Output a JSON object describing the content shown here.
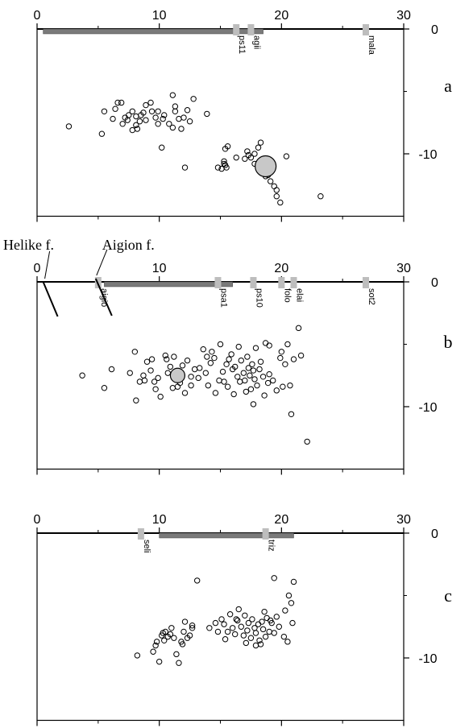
{
  "chart_data": [
    {
      "type": "scatter",
      "panel": "a",
      "xlim": [
        0,
        30
      ],
      "ylim": [
        -15,
        0
      ],
      "x_ticks": [
        "0",
        "10",
        "20",
        "30"
      ],
      "y_ticks": [
        "0",
        "-10"
      ],
      "band": [
        0.5,
        18.5
      ],
      "stations": [
        {
          "name": "ps11",
          "x": 16.3
        },
        {
          "name": "agii",
          "x": 17.5
        },
        {
          "name": "mala",
          "x": 26.9
        }
      ],
      "big_event": {
        "x": 18.7,
        "y": -11.0
      },
      "points": [
        [
          2.6,
          -7.8
        ],
        [
          5.3,
          -8.4
        ],
        [
          5.5,
          -6.6
        ],
        [
          6.2,
          -7.2
        ],
        [
          6.4,
          -6.4
        ],
        [
          6.6,
          -5.9
        ],
        [
          6.9,
          -5.9
        ],
        [
          7.0,
          -7.6
        ],
        [
          7.2,
          -7.1
        ],
        [
          7.4,
          -7.3
        ],
        [
          7.5,
          -6.9
        ],
        [
          7.8,
          -6.6
        ],
        [
          7.8,
          -8.1
        ],
        [
          8.1,
          -7.0
        ],
        [
          8.1,
          -7.7
        ],
        [
          8.2,
          -8.0
        ],
        [
          8.4,
          -7.4
        ],
        [
          8.5,
          -6.9
        ],
        [
          8.7,
          -6.7
        ],
        [
          8.9,
          -7.3
        ],
        [
          8.9,
          -6.1
        ],
        [
          9.3,
          -5.9
        ],
        [
          9.4,
          -6.6
        ],
        [
          9.7,
          -7.1
        ],
        [
          9.9,
          -7.6
        ],
        [
          9.9,
          -6.6
        ],
        [
          10.3,
          -7.2
        ],
        [
          10.2,
          -9.5
        ],
        [
          10.4,
          -6.9
        ],
        [
          10.8,
          -7.6
        ],
        [
          11.1,
          -7.9
        ],
        [
          11.3,
          -6.6
        ],
        [
          11.1,
          -5.3
        ],
        [
          11.3,
          -6.2
        ],
        [
          11.6,
          -7.2
        ],
        [
          11.8,
          -8.0
        ],
        [
          12.0,
          -7.1
        ],
        [
          12.3,
          -6.5
        ],
        [
          12.5,
          -7.4
        ],
        [
          12.8,
          -5.6
        ],
        [
          12.1,
          -11.1
        ],
        [
          13.9,
          -6.8
        ],
        [
          14.8,
          -11.1
        ],
        [
          15.1,
          -11.2
        ],
        [
          15.3,
          -10.6
        ],
        [
          15.4,
          -10.9
        ],
        [
          15.6,
          -9.4
        ],
        [
          15.4,
          -9.6
        ],
        [
          15.5,
          -11.1
        ],
        [
          15.3,
          -10.8
        ],
        [
          16.3,
          -10.3
        ],
        [
          17.0,
          -10.4
        ],
        [
          17.3,
          -10.1
        ],
        [
          17.5,
          -10.3
        ],
        [
          17.8,
          -10.0
        ],
        [
          17.8,
          -10.8
        ],
        [
          18.1,
          -9.5
        ],
        [
          18.3,
          -9.1
        ],
        [
          18.7,
          -11.8
        ],
        [
          19.1,
          -12.2
        ],
        [
          19.4,
          -12.6
        ],
        [
          19.6,
          -13.4
        ],
        [
          19.6,
          -12.9
        ],
        [
          19.9,
          -13.9
        ],
        [
          18.6,
          -10.5
        ],
        [
          18.9,
          -11.7
        ],
        [
          20.4,
          -10.2
        ],
        [
          23.2,
          -13.4
        ],
        [
          17.2,
          -9.8
        ]
      ]
    },
    {
      "type": "scatter",
      "panel": "b",
      "xlim": [
        0,
        30
      ],
      "ylim": [
        -15,
        0
      ],
      "x_ticks": [
        "0",
        "10",
        "20",
        "30"
      ],
      "y_ticks": [
        "0",
        "-10"
      ],
      "band": [
        5.5,
        16.0
      ],
      "stations": [
        {
          "name": "aigio",
          "x": 5.0
        },
        {
          "name": "psa1",
          "x": 14.8
        },
        {
          "name": "ps10",
          "x": 17.7
        },
        {
          "name": "folo",
          "x": 20.0
        },
        {
          "name": "elai",
          "x": 21.0
        },
        {
          "name": "sot2",
          "x": 26.9
        }
      ],
      "faults": [
        {
          "name": "Helike f.",
          "x": 0.5
        },
        {
          "name": "Aigion f.",
          "x": 4.8
        }
      ],
      "big_event": {
        "x": 11.5,
        "y": -7.5
      },
      "points": [
        [
          3.7,
          -7.5
        ],
        [
          5.5,
          -8.5
        ],
        [
          6.1,
          -7.0
        ],
        [
          7.6,
          -7.3
        ],
        [
          8.1,
          -9.5
        ],
        [
          8.0,
          -5.6
        ],
        [
          8.7,
          -7.5
        ],
        [
          8.8,
          -7.9
        ],
        [
          9.0,
          -6.4
        ],
        [
          9.3,
          -7.1
        ],
        [
          9.6,
          -8.0
        ],
        [
          9.7,
          -8.6
        ],
        [
          9.9,
          -7.7
        ],
        [
          10.1,
          -9.2
        ],
        [
          10.5,
          -5.9
        ],
        [
          10.6,
          -6.2
        ],
        [
          10.9,
          -6.8
        ],
        [
          11.2,
          -6.0
        ],
        [
          11.4,
          -7.8
        ],
        [
          11.5,
          -8.4
        ],
        [
          11.7,
          -8.1
        ],
        [
          11.9,
          -6.7
        ],
        [
          12.1,
          -8.9
        ],
        [
          12.6,
          -8.3
        ],
        [
          12.9,
          -7.0
        ],
        [
          13.2,
          -7.7
        ],
        [
          13.6,
          -5.4
        ],
        [
          13.8,
          -7.3
        ],
        [
          14.0,
          -8.3
        ],
        [
          14.2,
          -6.5
        ],
        [
          14.5,
          -6.1
        ],
        [
          14.9,
          -7.9
        ],
        [
          15.0,
          -5.0
        ],
        [
          15.2,
          -7.2
        ],
        [
          15.5,
          -6.6
        ],
        [
          15.6,
          -8.4
        ],
        [
          15.9,
          -5.8
        ],
        [
          16.0,
          -7.0
        ],
        [
          16.2,
          -6.8
        ],
        [
          16.4,
          -7.6
        ],
        [
          16.6,
          -8.0
        ],
        [
          16.7,
          -6.3
        ],
        [
          16.9,
          -7.3
        ],
        [
          17.0,
          -7.9
        ],
        [
          17.1,
          -8.8
        ],
        [
          17.3,
          -6.9
        ],
        [
          17.4,
          -7.5
        ],
        [
          17.6,
          -6.6
        ],
        [
          17.7,
          -7.1
        ],
        [
          17.8,
          -7.8
        ],
        [
          17.9,
          -5.3
        ],
        [
          18.0,
          -8.3
        ],
        [
          18.2,
          -7.0
        ],
        [
          18.3,
          -6.4
        ],
        [
          18.5,
          -7.6
        ],
        [
          18.6,
          -9.1
        ],
        [
          18.7,
          -4.9
        ],
        [
          19.0,
          -7.4
        ],
        [
          19.3,
          -7.9
        ],
        [
          19.6,
          -8.7
        ],
        [
          19.9,
          -6.1
        ],
        [
          20.0,
          -5.6
        ],
        [
          20.3,
          -6.6
        ],
        [
          20.5,
          -5.0
        ],
        [
          20.7,
          -8.3
        ],
        [
          21.0,
          -6.2
        ],
        [
          21.4,
          -3.7
        ],
        [
          21.6,
          -5.9
        ],
        [
          19.0,
          -5.1
        ],
        [
          14.3,
          -5.6
        ],
        [
          15.7,
          -6.2
        ],
        [
          13.3,
          -6.9
        ],
        [
          12.6,
          -7.6
        ],
        [
          9.4,
          -6.2
        ],
        [
          16.5,
          -5.2
        ],
        [
          17.2,
          -6.0
        ],
        [
          20.8,
          -10.6
        ],
        [
          22.1,
          -12.8
        ],
        [
          20.1,
          -8.4
        ],
        [
          18.9,
          -8.1
        ],
        [
          17.7,
          -9.8
        ],
        [
          14.6,
          -8.9
        ],
        [
          11.1,
          -8.5
        ],
        [
          12.3,
          -6.3
        ],
        [
          13.9,
          -6.0
        ],
        [
          15.3,
          -8.0
        ],
        [
          16.1,
          -9.0
        ],
        [
          17.5,
          -8.6
        ],
        [
          10.7,
          -7.3
        ],
        [
          8.4,
          -8.0
        ]
      ]
    },
    {
      "type": "scatter",
      "panel": "c",
      "xlim": [
        0,
        30
      ],
      "ylim": [
        -15,
        0
      ],
      "x_ticks": [
        "0",
        "10",
        "20",
        "30"
      ],
      "y_ticks": [
        "0",
        "-10"
      ],
      "band": [
        10.0,
        21.0
      ],
      "stations": [
        {
          "name": "seli",
          "x": 8.5
        },
        {
          "name": "triz",
          "x": 18.7
        }
      ],
      "points": [
        [
          8.2,
          -9.8
        ],
        [
          9.5,
          -9.5
        ],
        [
          9.7,
          -9.0
        ],
        [
          9.8,
          -8.7
        ],
        [
          10.0,
          -10.3
        ],
        [
          10.2,
          -8.2
        ],
        [
          10.3,
          -8.0
        ],
        [
          10.4,
          -8.6
        ],
        [
          10.5,
          -7.9
        ],
        [
          10.7,
          -8.3
        ],
        [
          10.9,
          -8.1
        ],
        [
          11.0,
          -7.6
        ],
        [
          11.2,
          -8.4
        ],
        [
          11.4,
          -9.7
        ],
        [
          11.6,
          -10.4
        ],
        [
          11.8,
          -8.7
        ],
        [
          12.0,
          -7.9
        ],
        [
          12.1,
          -7.1
        ],
        [
          12.3,
          -8.4
        ],
        [
          12.5,
          -8.2
        ],
        [
          12.7,
          -7.4
        ],
        [
          13.1,
          -3.8
        ],
        [
          14.1,
          -7.6
        ],
        [
          14.6,
          -7.2
        ],
        [
          15.1,
          -6.9
        ],
        [
          15.3,
          -7.3
        ],
        [
          15.6,
          -7.9
        ],
        [
          15.8,
          -6.5
        ],
        [
          16.0,
          -7.6
        ],
        [
          16.2,
          -8.1
        ],
        [
          16.4,
          -7.0
        ],
        [
          16.5,
          -6.1
        ],
        [
          16.7,
          -7.5
        ],
        [
          16.9,
          -8.2
        ],
        [
          17.0,
          -6.6
        ],
        [
          17.2,
          -7.8
        ],
        [
          17.3,
          -7.2
        ],
        [
          17.5,
          -8.4
        ],
        [
          17.6,
          -6.9
        ],
        [
          17.8,
          -7.6
        ],
        [
          17.9,
          -8.0
        ],
        [
          18.1,
          -7.3
        ],
        [
          18.2,
          -8.6
        ],
        [
          18.4,
          -7.1
        ],
        [
          18.5,
          -7.7
        ],
        [
          18.7,
          -8.3
        ],
        [
          18.8,
          -6.8
        ],
        [
          19.0,
          -7.9
        ],
        [
          19.2,
          -7.2
        ],
        [
          19.4,
          -8.0
        ],
        [
          19.6,
          -6.7
        ],
        [
          19.8,
          -7.5
        ],
        [
          20.2,
          -8.3
        ],
        [
          20.3,
          -6.2
        ],
        [
          20.6,
          -5.0
        ],
        [
          20.8,
          -5.6
        ],
        [
          20.9,
          -7.2
        ],
        [
          19.4,
          -3.6
        ],
        [
          21.0,
          -3.9
        ],
        [
          20.5,
          -8.7
        ],
        [
          17.9,
          -9.0
        ],
        [
          18.6,
          -6.3
        ],
        [
          16.3,
          -6.9
        ],
        [
          15.4,
          -8.5
        ],
        [
          14.8,
          -7.9
        ],
        [
          17.1,
          -8.8
        ],
        [
          18.3,
          -8.9
        ],
        [
          19.1,
          -7.0
        ],
        [
          11.9,
          -8.9
        ],
        [
          12.7,
          -7.6
        ]
      ]
    }
  ]
}
